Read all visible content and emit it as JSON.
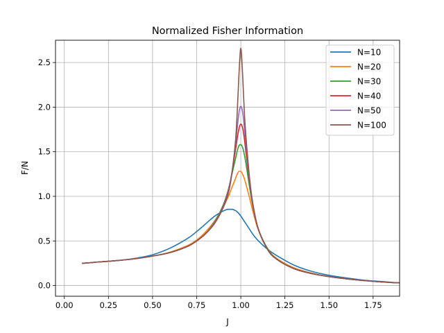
{
  "chart_data": {
    "type": "line",
    "title": "Normalized Fisher Information",
    "xlabel": "J",
    "ylabel": "F/N",
    "xlim": [
      -0.05,
      1.9
    ],
    "ylim": [
      -0.12,
      2.75
    ],
    "grid": true,
    "legend_position": "top-right",
    "xticks": [
      0.0,
      0.25,
      0.5,
      0.75,
      1.0,
      1.25,
      1.5,
      1.75
    ],
    "xtick_labels": [
      "0.00",
      "0.25",
      "0.50",
      "0.75",
      "1.00",
      "1.25",
      "1.50",
      "1.75"
    ],
    "yticks": [
      0.0,
      0.5,
      1.0,
      1.5,
      2.0,
      2.5
    ],
    "ytick_labels": [
      "0.0",
      "0.5",
      "1.0",
      "1.5",
      "2.0",
      "2.5"
    ],
    "x": [
      0.1,
      0.2,
      0.3,
      0.4,
      0.5,
      0.6,
      0.7,
      0.75,
      0.8,
      0.85,
      0.9,
      0.93,
      0.95,
      0.97,
      0.98,
      0.99,
      1.0,
      1.01,
      1.02,
      1.03,
      1.05,
      1.07,
      1.1,
      1.15,
      1.2,
      1.3,
      1.4,
      1.5,
      1.6,
      1.7,
      1.8,
      1.9
    ],
    "series": [
      {
        "name": "N=10",
        "color": "#1f77b4",
        "values": [
          0.25,
          0.265,
          0.28,
          0.305,
          0.345,
          0.42,
          0.53,
          0.605,
          0.69,
          0.775,
          0.835,
          0.855,
          0.855,
          0.84,
          0.825,
          0.805,
          0.78,
          0.75,
          0.72,
          0.69,
          0.63,
          0.57,
          0.5,
          0.41,
          0.34,
          0.23,
          0.16,
          0.115,
          0.085,
          0.06,
          0.045,
          0.03
        ]
      },
      {
        "name": "N=20",
        "color": "#ff7f0e",
        "values": [
          0.25,
          0.265,
          0.28,
          0.3,
          0.33,
          0.375,
          0.45,
          0.51,
          0.6,
          0.72,
          0.88,
          1.0,
          1.1,
          1.2,
          1.25,
          1.28,
          1.28,
          1.25,
          1.2,
          1.13,
          0.98,
          0.82,
          0.62,
          0.42,
          0.31,
          0.2,
          0.14,
          0.1,
          0.075,
          0.055,
          0.04,
          0.03
        ]
      },
      {
        "name": "N=30",
        "color": "#2ca02c",
        "values": [
          0.25,
          0.265,
          0.28,
          0.3,
          0.33,
          0.37,
          0.44,
          0.5,
          0.58,
          0.71,
          0.9,
          1.08,
          1.25,
          1.42,
          1.51,
          1.57,
          1.58,
          1.55,
          1.47,
          1.36,
          1.1,
          0.87,
          0.63,
          0.42,
          0.3,
          0.19,
          0.135,
          0.1,
          0.075,
          0.055,
          0.04,
          0.03
        ]
      },
      {
        "name": "N=40",
        "color": "#d62728",
        "values": [
          0.25,
          0.265,
          0.28,
          0.3,
          0.33,
          0.37,
          0.44,
          0.5,
          0.58,
          0.7,
          0.89,
          1.07,
          1.27,
          1.52,
          1.65,
          1.76,
          1.81,
          1.77,
          1.65,
          1.48,
          1.15,
          0.88,
          0.63,
          0.41,
          0.3,
          0.19,
          0.135,
          0.1,
          0.075,
          0.055,
          0.04,
          0.03
        ]
      },
      {
        "name": "N=50",
        "color": "#9467bd",
        "values": [
          0.25,
          0.265,
          0.28,
          0.3,
          0.33,
          0.37,
          0.44,
          0.5,
          0.58,
          0.7,
          0.88,
          1.06,
          1.27,
          1.58,
          1.77,
          1.94,
          2.01,
          1.95,
          1.78,
          1.56,
          1.17,
          0.88,
          0.63,
          0.41,
          0.3,
          0.19,
          0.135,
          0.1,
          0.075,
          0.055,
          0.04,
          0.03
        ]
      },
      {
        "name": "N=100",
        "color": "#8c564b",
        "values": [
          0.25,
          0.265,
          0.28,
          0.3,
          0.33,
          0.37,
          0.44,
          0.5,
          0.58,
          0.69,
          0.87,
          1.04,
          1.26,
          1.62,
          1.95,
          2.38,
          2.66,
          2.38,
          1.95,
          1.65,
          1.2,
          0.9,
          0.63,
          0.41,
          0.3,
          0.19,
          0.135,
          0.1,
          0.075,
          0.055,
          0.04,
          0.03
        ]
      }
    ]
  }
}
